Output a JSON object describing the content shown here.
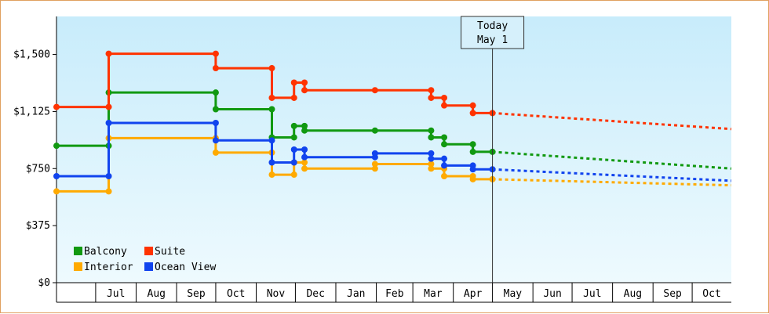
{
  "chart_data": {
    "type": "line",
    "title": "",
    "xlabel": "",
    "ylabel": "",
    "ylim": [
      0,
      1750
    ],
    "y_ticks": [
      {
        "value": 0,
        "label": "$0"
      },
      {
        "value": 375,
        "label": "$375"
      },
      {
        "value": 750,
        "label": "$750"
      },
      {
        "value": 1125,
        "label": "$1,125"
      },
      {
        "value": 1500,
        "label": "$1,500"
      }
    ],
    "x_axis_range": [
      "2024-06-01",
      "2025-10-31"
    ],
    "x_months": [
      {
        "label": "Jul",
        "start": "2024-07-01",
        "end": "2024-08-01"
      },
      {
        "label": "Aug",
        "start": "2024-08-01",
        "end": "2024-09-01"
      },
      {
        "label": "Sep",
        "start": "2024-09-01",
        "end": "2024-10-01"
      },
      {
        "label": "Oct",
        "start": "2024-10-01",
        "end": "2024-11-01"
      },
      {
        "label": "Nov",
        "start": "2024-11-01",
        "end": "2024-12-01"
      },
      {
        "label": "Dec",
        "start": "2024-12-01",
        "end": "2025-01-01"
      },
      {
        "label": "Jan",
        "start": "2025-01-01",
        "end": "2025-02-01"
      },
      {
        "label": "Feb",
        "start": "2025-02-01",
        "end": "2025-03-01"
      },
      {
        "label": "Mar",
        "start": "2025-03-01",
        "end": "2025-04-01"
      },
      {
        "label": "Apr",
        "start": "2025-04-01",
        "end": "2025-05-01"
      },
      {
        "label": "May",
        "start": "2025-05-01",
        "end": "2025-06-01"
      },
      {
        "label": "Jun",
        "start": "2025-06-01",
        "end": "2025-07-01"
      },
      {
        "label": "Jul",
        "start": "2025-07-01",
        "end": "2025-08-01"
      },
      {
        "label": "Aug",
        "start": "2025-08-01",
        "end": "2025-09-01"
      },
      {
        "label": "Sep",
        "start": "2025-09-01",
        "end": "2025-10-01"
      },
      {
        "label": "Oct",
        "start": "2025-10-01",
        "end": "2025-10-31"
      }
    ],
    "today": {
      "date": "2025-05-01",
      "label_line1": "Today",
      "label_line2": "May 1"
    },
    "grid": false,
    "legend_position": "bottom-left",
    "series": [
      {
        "name": "Balcony",
        "color": "#119911",
        "points": [
          [
            "2024-06-01",
            900
          ],
          [
            "2024-07-11",
            900
          ],
          [
            "2024-07-11",
            1250
          ],
          [
            "2024-10-01",
            1250
          ],
          [
            "2024-10-01",
            1140
          ],
          [
            "2024-11-13",
            1140
          ],
          [
            "2024-11-13",
            955
          ],
          [
            "2024-11-30",
            955
          ],
          [
            "2024-11-30",
            1030
          ],
          [
            "2024-12-08",
            1030
          ],
          [
            "2024-12-08",
            1000
          ],
          [
            "2025-01-31",
            1000
          ],
          [
            "2025-03-15",
            1000
          ],
          [
            "2025-03-15",
            955
          ],
          [
            "2025-03-25",
            955
          ],
          [
            "2025-03-25",
            910
          ],
          [
            "2025-04-16",
            910
          ],
          [
            "2025-04-16",
            860
          ],
          [
            "2025-05-01",
            860
          ]
        ],
        "forecast": [
          [
            "2025-05-01",
            860
          ],
          [
            "2025-10-31",
            750
          ]
        ]
      },
      {
        "name": "Suite",
        "color": "#ff3300",
        "points": [
          [
            "2024-06-01",
            1155
          ],
          [
            "2024-07-11",
            1155
          ],
          [
            "2024-07-11",
            1505
          ],
          [
            "2024-10-01",
            1505
          ],
          [
            "2024-10-01",
            1410
          ],
          [
            "2024-11-13",
            1410
          ],
          [
            "2024-11-13",
            1215
          ],
          [
            "2024-11-30",
            1215
          ],
          [
            "2024-11-30",
            1315
          ],
          [
            "2024-12-08",
            1315
          ],
          [
            "2024-12-08",
            1265
          ],
          [
            "2025-01-31",
            1265
          ],
          [
            "2025-03-15",
            1265
          ],
          [
            "2025-03-15",
            1215
          ],
          [
            "2025-03-25",
            1215
          ],
          [
            "2025-03-25",
            1165
          ],
          [
            "2025-04-16",
            1165
          ],
          [
            "2025-04-16",
            1115
          ],
          [
            "2025-05-01",
            1115
          ]
        ],
        "forecast": [
          [
            "2025-05-01",
            1115
          ],
          [
            "2025-10-31",
            1010
          ]
        ]
      },
      {
        "name": "Interior",
        "color": "#ffaa00",
        "points": [
          [
            "2024-06-01",
            600
          ],
          [
            "2024-07-11",
            600
          ],
          [
            "2024-07-11",
            950
          ],
          [
            "2024-10-01",
            950
          ],
          [
            "2024-10-01",
            855
          ],
          [
            "2024-11-13",
            855
          ],
          [
            "2024-11-13",
            710
          ],
          [
            "2024-11-30",
            710
          ],
          [
            "2024-11-30",
            790
          ],
          [
            "2024-12-08",
            790
          ],
          [
            "2024-12-08",
            750
          ],
          [
            "2025-01-31",
            750
          ],
          [
            "2025-01-31",
            780
          ],
          [
            "2025-03-15",
            780
          ],
          [
            "2025-03-15",
            750
          ],
          [
            "2025-03-25",
            750
          ],
          [
            "2025-03-25",
            700
          ],
          [
            "2025-04-16",
            700
          ],
          [
            "2025-04-16",
            680
          ],
          [
            "2025-05-01",
            680
          ]
        ],
        "forecast": [
          [
            "2025-05-01",
            680
          ],
          [
            "2025-10-31",
            640
          ]
        ]
      },
      {
        "name": "Ocean View",
        "color": "#1144ee",
        "points": [
          [
            "2024-06-01",
            700
          ],
          [
            "2024-07-11",
            700
          ],
          [
            "2024-07-11",
            1050
          ],
          [
            "2024-10-01",
            1050
          ],
          [
            "2024-10-01",
            935
          ],
          [
            "2024-11-13",
            935
          ],
          [
            "2024-11-13",
            790
          ],
          [
            "2024-11-30",
            790
          ],
          [
            "2024-11-30",
            875
          ],
          [
            "2024-12-08",
            875
          ],
          [
            "2024-12-08",
            825
          ],
          [
            "2025-01-31",
            825
          ],
          [
            "2025-01-31",
            850
          ],
          [
            "2025-03-15",
            850
          ],
          [
            "2025-03-15",
            815
          ],
          [
            "2025-03-25",
            815
          ],
          [
            "2025-03-25",
            770
          ],
          [
            "2025-04-16",
            770
          ],
          [
            "2025-04-16",
            745
          ],
          [
            "2025-05-01",
            745
          ]
        ],
        "forecast": [
          [
            "2025-05-01",
            745
          ],
          [
            "2025-10-31",
            670
          ]
        ]
      }
    ],
    "legend_order": [
      "Balcony",
      "Suite",
      "Interior",
      "Ocean View"
    ]
  }
}
